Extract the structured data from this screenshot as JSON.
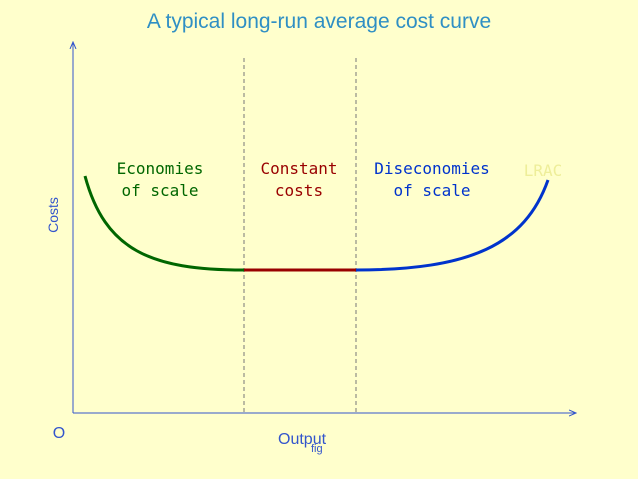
{
  "title": "A typical long-run average cost curve",
  "axes": {
    "y_label": "Costs",
    "x_label": "Output",
    "origin": "O"
  },
  "caption": "fig",
  "regions": [
    {
      "lines": [
        "Economies",
        "of scale"
      ]
    },
    {
      "lines": [
        "Constant",
        "costs"
      ]
    },
    {
      "lines": [
        "Diseconomies",
        "of scale"
      ]
    }
  ],
  "curve_label": "LRAC"
}
